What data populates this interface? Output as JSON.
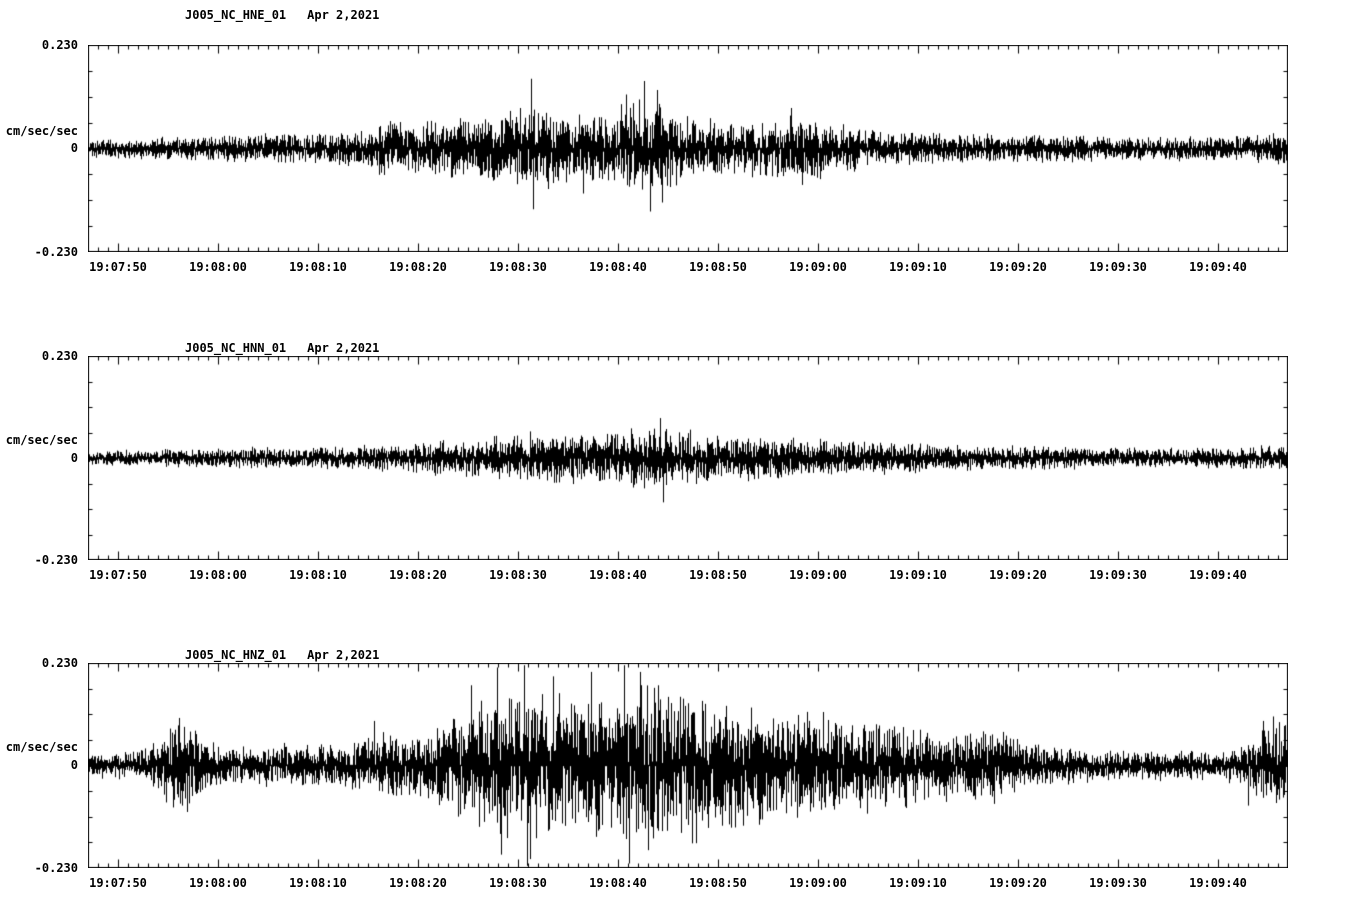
{
  "page": {
    "background": "#ffffff",
    "trace_color": "#000000"
  },
  "chart_data": [
    {
      "type": "line",
      "title": "J005_NC_HNE_01",
      "date": "Apr 2,2021",
      "ylabel": "cm/sec/sec",
      "yticks": [
        "0.230",
        "0",
        "-0.230"
      ],
      "ylim": [
        -0.23,
        0.23
      ],
      "duration_seconds": 120,
      "x_tick_labels": [
        "19:07:50",
        "19:08:00",
        "19:08:10",
        "19:08:20",
        "19:08:30",
        "19:08:40",
        "19:08:50",
        "19:09:00",
        "19:09:10",
        "19:09:20",
        "19:09:30",
        "19:09:40"
      ],
      "x_tick_offsets_seconds": [
        3,
        13,
        23,
        33,
        43,
        53,
        63,
        73,
        83,
        93,
        103,
        113
      ],
      "envelope_interval_seconds": 2,
      "envelope": [
        0.014,
        0.014,
        0.015,
        0.016,
        0.018,
        0.018,
        0.018,
        0.02,
        0.02,
        0.022,
        0.022,
        0.024,
        0.024,
        0.026,
        0.03,
        0.045,
        0.035,
        0.04,
        0.045,
        0.04,
        0.05,
        0.055,
        0.06,
        0.055,
        0.05,
        0.05,
        0.055,
        0.07,
        0.075,
        0.06,
        0.05,
        0.045,
        0.04,
        0.04,
        0.045,
        0.055,
        0.05,
        0.04,
        0.035,
        0.03,
        0.028,
        0.026,
        0.025,
        0.024,
        0.022,
        0.022,
        0.02,
        0.02,
        0.02,
        0.02,
        0.02,
        0.019,
        0.019,
        0.018,
        0.018,
        0.018,
        0.018,
        0.018,
        0.02,
        0.022,
        0.022
      ],
      "spikes": [
        {
          "t": 44.3,
          "amp": 0.155
        },
        {
          "t": 44.5,
          "amp": -0.135
        },
        {
          "t": 43.2,
          "amp": 0.09
        },
        {
          "t": 46.0,
          "amp": -0.09
        },
        {
          "t": 53.8,
          "amp": 0.12
        },
        {
          "t": 55.6,
          "amp": 0.15
        },
        {
          "t": 56.2,
          "amp": -0.14
        },
        {
          "t": 56.9,
          "amp": 0.13
        },
        {
          "t": 57.4,
          "amp": -0.12
        },
        {
          "t": 49.5,
          "amp": -0.1
        },
        {
          "t": 70.3,
          "amp": 0.09
        }
      ],
      "seed": 11
    },
    {
      "type": "line",
      "title": "J005_NC_HNN_01",
      "date": "Apr 2,2021",
      "ylabel": "cm/sec/sec",
      "yticks": [
        "0.230",
        "0",
        "-0.230"
      ],
      "ylim": [
        -0.23,
        0.23
      ],
      "duration_seconds": 120,
      "x_tick_labels": [
        "19:07:50",
        "19:08:00",
        "19:08:10",
        "19:08:20",
        "19:08:30",
        "19:08:40",
        "19:08:50",
        "19:09:00",
        "19:09:10",
        "19:09:20",
        "19:09:30",
        "19:09:40"
      ],
      "x_tick_offsets_seconds": [
        3,
        13,
        23,
        33,
        43,
        53,
        63,
        73,
        83,
        93,
        103,
        113
      ],
      "envelope_interval_seconds": 2,
      "envelope": [
        0.012,
        0.012,
        0.013,
        0.013,
        0.014,
        0.014,
        0.015,
        0.015,
        0.016,
        0.016,
        0.016,
        0.017,
        0.018,
        0.018,
        0.02,
        0.02,
        0.022,
        0.024,
        0.026,
        0.028,
        0.03,
        0.032,
        0.035,
        0.035,
        0.038,
        0.04,
        0.04,
        0.042,
        0.045,
        0.042,
        0.04,
        0.038,
        0.036,
        0.035,
        0.034,
        0.032,
        0.03,
        0.028,
        0.026,
        0.025,
        0.024,
        0.022,
        0.022,
        0.02,
        0.02,
        0.019,
        0.018,
        0.018,
        0.017,
        0.017,
        0.016,
        0.016,
        0.016,
        0.015,
        0.015,
        0.015,
        0.015,
        0.016,
        0.017,
        0.018,
        0.018
      ],
      "spikes": [
        {
          "t": 57.2,
          "amp": 0.09
        },
        {
          "t": 57.5,
          "amp": -0.1
        },
        {
          "t": 44.2,
          "amp": 0.06
        },
        {
          "t": 47.1,
          "amp": -0.055
        },
        {
          "t": 52.4,
          "amp": 0.05
        },
        {
          "t": 40.8,
          "amp": 0.05
        }
      ],
      "seed": 22
    },
    {
      "type": "line",
      "title": "J005_NC_HNZ_01",
      "date": "Apr 2,2021",
      "ylabel": "cm/sec/sec",
      "yticks": [
        "0.230",
        "0",
        "-0.230"
      ],
      "ylim": [
        -0.23,
        0.23
      ],
      "duration_seconds": 120,
      "x_tick_labels": [
        "19:07:50",
        "19:08:00",
        "19:08:10",
        "19:08:20",
        "19:08:30",
        "19:08:40",
        "19:08:50",
        "19:09:00",
        "19:09:10",
        "19:09:20",
        "19:09:30",
        "19:09:40"
      ],
      "x_tick_offsets_seconds": [
        3,
        13,
        23,
        33,
        43,
        53,
        63,
        73,
        83,
        93,
        103,
        113
      ],
      "envelope_interval_seconds": 2,
      "envelope": [
        0.018,
        0.02,
        0.02,
        0.025,
        0.06,
        0.07,
        0.035,
        0.028,
        0.028,
        0.03,
        0.035,
        0.03,
        0.032,
        0.035,
        0.04,
        0.05,
        0.045,
        0.055,
        0.07,
        0.09,
        0.1,
        0.11,
        0.1,
        0.11,
        0.1,
        0.11,
        0.1,
        0.12,
        0.12,
        0.11,
        0.12,
        0.1,
        0.095,
        0.09,
        0.085,
        0.08,
        0.075,
        0.07,
        0.075,
        0.07,
        0.065,
        0.06,
        0.055,
        0.05,
        0.05,
        0.055,
        0.05,
        0.035,
        0.03,
        0.028,
        0.026,
        0.025,
        0.024,
        0.022,
        0.022,
        0.022,
        0.022,
        0.025,
        0.035,
        0.06,
        0.07
      ],
      "spikes": [
        {
          "t": 9.0,
          "amp": 0.09
        },
        {
          "t": 9.4,
          "amp": -0.09
        },
        {
          "t": 28.6,
          "amp": 0.1
        },
        {
          "t": 38.3,
          "amp": 0.18
        },
        {
          "t": 40.9,
          "amp": 0.22
        },
        {
          "t": 41.3,
          "amp": -0.2
        },
        {
          "t": 43.6,
          "amp": 0.225
        },
        {
          "t": 43.9,
          "amp": -0.225
        },
        {
          "t": 44.2,
          "amp": -0.21
        },
        {
          "t": 46.5,
          "amp": 0.2
        },
        {
          "t": 50.3,
          "amp": 0.21
        },
        {
          "t": 50.8,
          "amp": -0.16
        },
        {
          "t": 53.6,
          "amp": 0.225
        },
        {
          "t": 54.1,
          "amp": -0.22
        },
        {
          "t": 55.2,
          "amp": 0.21
        },
        {
          "t": 56.0,
          "amp": -0.19
        },
        {
          "t": 57.0,
          "amp": 0.18
        },
        {
          "t": 59.5,
          "amp": 0.15
        },
        {
          "t": 62.0,
          "amp": -0.14
        },
        {
          "t": 66.3,
          "amp": 0.13
        },
        {
          "t": 73.5,
          "amp": 0.12
        },
        {
          "t": 116.0,
          "amp": -0.09
        },
        {
          "t": 117.5,
          "amp": 0.1
        },
        {
          "t": 118.5,
          "amp": 0.11
        }
      ],
      "seed": 33
    }
  ]
}
